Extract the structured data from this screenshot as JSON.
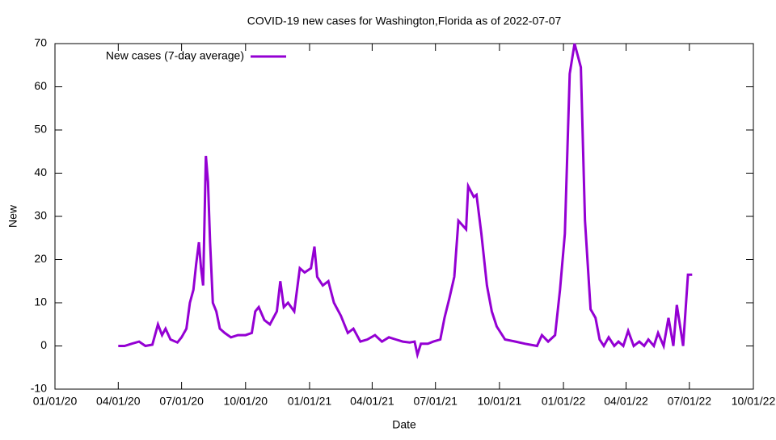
{
  "chart_data": {
    "type": "line",
    "title": "COVID-19 new cases for Washington,Florida as of 2022-07-07",
    "x_label": "Date",
    "y_label": "New",
    "legend": "top-left",
    "xlim": [
      "2020-01-01",
      "2022-10-01"
    ],
    "xticks": [
      {
        "value": "2020-01-01",
        "label": "01/01/20"
      },
      {
        "value": "2020-04-01",
        "label": "04/01/20"
      },
      {
        "value": "2020-07-01",
        "label": "07/01/20"
      },
      {
        "value": "2020-10-01",
        "label": "10/01/20"
      },
      {
        "value": "2021-01-01",
        "label": "01/01/21"
      },
      {
        "value": "2021-04-01",
        "label": "04/01/21"
      },
      {
        "value": "2021-07-01",
        "label": "07/01/21"
      },
      {
        "value": "2021-10-01",
        "label": "10/01/21"
      },
      {
        "value": "2022-01-01",
        "label": "01/01/22"
      },
      {
        "value": "2022-04-01",
        "label": "04/01/22"
      },
      {
        "value": "2022-07-01",
        "label": "07/01/22"
      },
      {
        "value": "2022-10-01",
        "label": "10/01/22"
      }
    ],
    "ylim": [
      -10,
      70
    ],
    "yticks": [
      -10,
      0,
      10,
      20,
      30,
      40,
      50,
      60,
      70
    ],
    "x": [
      "2020-04-01",
      "2020-04-10",
      "2020-04-20",
      "2020-05-01",
      "2020-05-10",
      "2020-05-20",
      "2020-05-28",
      "2020-06-03",
      "2020-06-08",
      "2020-06-15",
      "2020-06-25",
      "2020-07-01",
      "2020-07-08",
      "2020-07-13",
      "2020-07-18",
      "2020-07-22",
      "2020-07-26",
      "2020-07-29",
      "2020-08-01",
      "2020-08-05",
      "2020-08-08",
      "2020-08-11",
      "2020-08-15",
      "2020-08-20",
      "2020-08-25",
      "2020-09-01",
      "2020-09-10",
      "2020-09-20",
      "2020-10-01",
      "2020-10-10",
      "2020-10-15",
      "2020-10-20",
      "2020-10-28",
      "2020-11-05",
      "2020-11-15",
      "2020-11-20",
      "2020-11-25",
      "2020-12-01",
      "2020-12-10",
      "2020-12-18",
      "2020-12-25",
      "2021-01-03",
      "2021-01-08",
      "2021-01-12",
      "2021-01-20",
      "2021-01-28",
      "2021-02-05",
      "2021-02-15",
      "2021-02-25",
      "2021-03-05",
      "2021-03-15",
      "2021-03-25",
      "2021-04-05",
      "2021-04-15",
      "2021-04-25",
      "2021-05-05",
      "2021-05-15",
      "2021-05-25",
      "2021-06-01",
      "2021-06-05",
      "2021-06-10",
      "2021-06-20",
      "2021-06-28",
      "2021-07-08",
      "2021-07-14",
      "2021-07-21",
      "2021-07-28",
      "2021-08-03",
      "2021-08-14",
      "2021-08-17",
      "2021-08-25",
      "2021-08-29",
      "2021-09-05",
      "2021-09-13",
      "2021-09-20",
      "2021-09-27",
      "2021-10-09",
      "2021-10-24",
      "2021-11-07",
      "2021-11-24",
      "2021-12-01",
      "2021-12-10",
      "2021-12-20",
      "2021-12-27",
      "2022-01-03",
      "2022-01-10",
      "2022-01-17",
      "2022-01-26",
      "2022-02-01",
      "2022-02-09",
      "2022-02-16",
      "2022-02-22",
      "2022-02-28",
      "2022-03-07",
      "2022-03-15",
      "2022-03-21",
      "2022-03-28",
      "2022-04-04",
      "2022-04-12",
      "2022-04-20",
      "2022-04-27",
      "2022-05-03",
      "2022-05-11",
      "2022-05-17",
      "2022-05-25",
      "2022-06-01",
      "2022-06-08",
      "2022-06-13",
      "2022-06-22",
      "2022-06-29",
      "2022-07-05"
    ],
    "series": [
      {
        "name": "New cases (7-day average)",
        "color": "#9400d3",
        "values": [
          0,
          0,
          0.5,
          1,
          0,
          0.3,
          5,
          2.5,
          4,
          1.5,
          0.8,
          2,
          4,
          10,
          13,
          19,
          24,
          18,
          14,
          44,
          38,
          24,
          10,
          8,
          4,
          3,
          2,
          2.5,
          2.5,
          3,
          8,
          9,
          6,
          5,
          8,
          15,
          9,
          10,
          8,
          18,
          17,
          18,
          23,
          16,
          14,
          15,
          10,
          7,
          3,
          4,
          1,
          1.5,
          2.5,
          1,
          2,
          1.5,
          1,
          0.8,
          1,
          -2,
          0.5,
          0.5,
          1,
          1.5,
          6.5,
          11,
          16,
          29,
          27,
          37,
          34.5,
          35,
          26,
          14,
          8,
          4.5,
          1.5,
          1,
          0.5,
          0,
          2.5,
          1,
          2.5,
          13,
          26,
          63,
          70,
          64.5,
          29,
          8.5,
          6.5,
          1.5,
          0,
          2,
          0,
          1,
          0,
          3.5,
          0,
          1,
          0,
          1.5,
          0,
          3,
          0,
          6.5,
          0,
          9.5,
          0,
          16.5,
          16.5
        ]
      }
    ]
  }
}
